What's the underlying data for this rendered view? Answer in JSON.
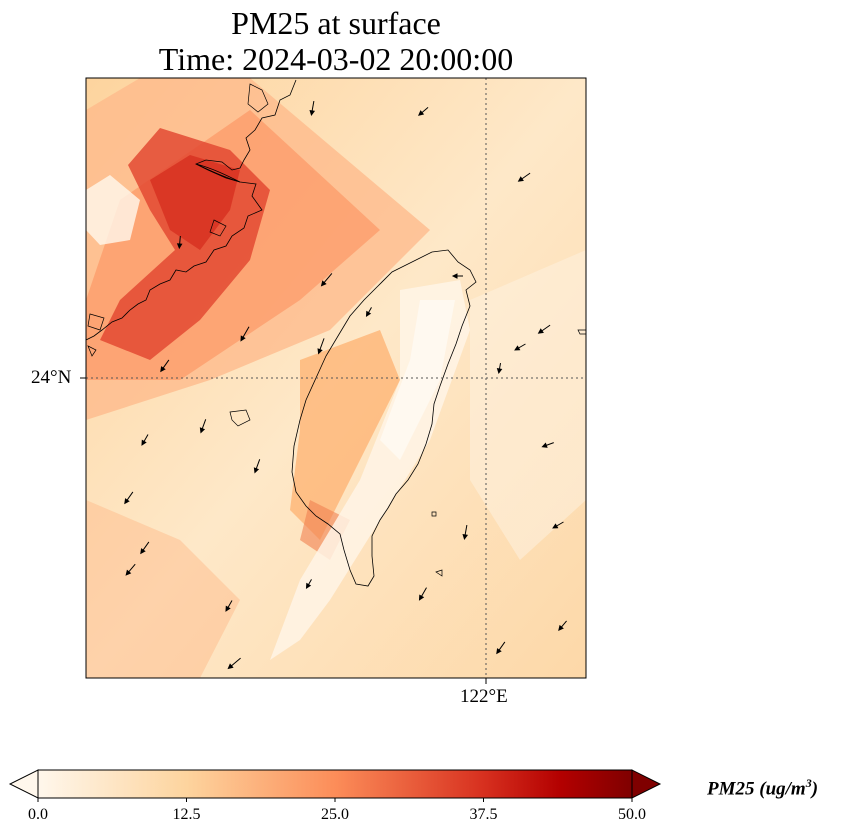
{
  "title": {
    "line1": "PM25 at surface",
    "line2": "Time: 2024-03-02 20:00:00"
  },
  "map": {
    "lat_label": "24°N",
    "lon_label": "122°E",
    "gridline_lat": 24,
    "gridline_lon": 122,
    "field_name": "PM25",
    "colormap": "OrRd",
    "colors": {
      "low": "#fff7ec",
      "mid": "#fc8d59",
      "high": "#7f0000",
      "coastline": "#000000",
      "gridline": "#555555"
    },
    "vector_arrows": "wind vectors (black quivers)"
  },
  "colorbar": {
    "ticks": [
      "0.0",
      "12.5",
      "25.0",
      "37.5",
      "50.0"
    ],
    "min": 0,
    "max": 50,
    "extend": "both",
    "label_main": "PM25 (ug/m",
    "label_sup": "3",
    "label_close": ")"
  }
}
